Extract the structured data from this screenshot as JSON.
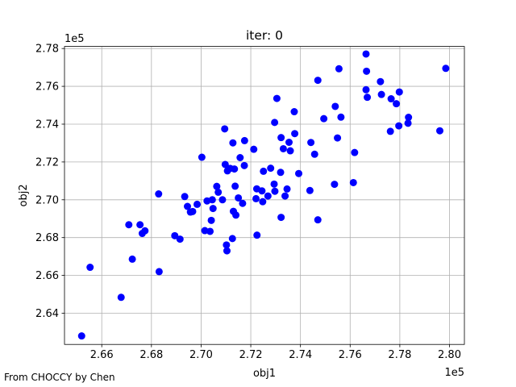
{
  "chart_data": {
    "type": "scatter",
    "title": "iter: 0",
    "xlabel": "obj1",
    "ylabel": "obj2",
    "x_offset_label": "1e5",
    "y_offset_label": "1e5",
    "xlim": [
      2.645,
      2.806
    ],
    "ylim": [
      2.6235,
      2.7811
    ],
    "xticks": [
      2.66,
      2.68,
      2.7,
      2.72,
      2.74,
      2.76,
      2.78,
      2.8
    ],
    "xtick_labels": [
      "2.66",
      "2.68",
      "2.70",
      "2.72",
      "2.74",
      "2.76",
      "2.78",
      "2.80"
    ],
    "yticks": [
      2.64,
      2.66,
      2.68,
      2.7,
      2.72,
      2.74,
      2.76,
      2.78
    ],
    "ytick_labels": [
      "2.64",
      "2.66",
      "2.68",
      "2.70",
      "2.72",
      "2.74",
      "2.76",
      "2.78"
    ],
    "grid": true,
    "color": "#0000ff",
    "points": [
      [
        2.6519,
        2.628
      ],
      [
        2.6553,
        2.6643
      ],
      [
        2.6678,
        2.6484
      ],
      [
        2.6709,
        2.6868
      ],
      [
        2.6723,
        2.6686
      ],
      [
        2.6754,
        2.6868
      ],
      [
        2.6763,
        2.6822
      ],
      [
        2.6774,
        2.6836
      ],
      [
        2.6829,
        2.7031
      ],
      [
        2.6831,
        2.662
      ],
      [
        2.6894,
        2.681
      ],
      [
        2.6915,
        2.6792
      ],
      [
        2.6934,
        2.7017
      ],
      [
        2.6945,
        2.6965
      ],
      [
        2.6957,
        2.6935
      ],
      [
        2.6966,
        2.6938
      ],
      [
        2.6984,
        2.6976
      ],
      [
        2.7003,
        2.7225
      ],
      [
        2.7015,
        2.6837
      ],
      [
        2.7024,
        2.6994
      ],
      [
        2.7036,
        2.6833
      ],
      [
        2.7041,
        2.6891
      ],
      [
        2.7045,
        2.7
      ],
      [
        2.7048,
        2.6954
      ],
      [
        2.7063,
        2.7071
      ],
      [
        2.7069,
        2.704
      ],
      [
        2.7086,
        2.7
      ],
      [
        2.7095,
        2.7375
      ],
      [
        2.7097,
        2.7187
      ],
      [
        2.7102,
        2.6761
      ],
      [
        2.7104,
        2.673
      ],
      [
        2.7106,
        2.7153
      ],
      [
        2.7117,
        2.7166
      ],
      [
        2.7126,
        2.6795
      ],
      [
        2.7128,
        2.7301
      ],
      [
        2.713,
        2.6939
      ],
      [
        2.7134,
        2.7163
      ],
      [
        2.7137,
        2.7072
      ],
      [
        2.714,
        2.6919
      ],
      [
        2.715,
        2.701
      ],
      [
        2.7157,
        2.7223
      ],
      [
        2.7167,
        2.6981
      ],
      [
        2.7174,
        2.7181
      ],
      [
        2.7175,
        2.7313
      ],
      [
        2.7212,
        2.7267
      ],
      [
        2.7221,
        2.7006
      ],
      [
        2.7225,
        2.6813
      ],
      [
        2.7224,
        2.7058
      ],
      [
        2.7245,
        2.7047
      ],
      [
        2.7248,
        2.699
      ],
      [
        2.7251,
        2.7151
      ],
      [
        2.7269,
        2.702
      ],
      [
        2.728,
        2.7167
      ],
      [
        2.7294,
        2.7083
      ],
      [
        2.7296,
        2.7409
      ],
      [
        2.7297,
        2.7045
      ],
      [
        2.7305,
        2.7536
      ],
      [
        2.732,
        2.7145
      ],
      [
        2.7322,
        2.6907
      ],
      [
        2.7322,
        2.7329
      ],
      [
        2.7331,
        2.727
      ],
      [
        2.7338,
        2.702
      ],
      [
        2.7346,
        2.7057
      ],
      [
        2.7354,
        2.7304
      ],
      [
        2.7359,
        2.7259
      ],
      [
        2.7375,
        2.7466
      ],
      [
        2.7377,
        2.735
      ],
      [
        2.7393,
        2.7139
      ],
      [
        2.7438,
        2.7049
      ],
      [
        2.7442,
        2.7303
      ],
      [
        2.7457,
        2.7241
      ],
      [
        2.747,
        2.7632
      ],
      [
        2.747,
        2.6894
      ],
      [
        2.7494,
        2.7429
      ],
      [
        2.7537,
        2.7082
      ],
      [
        2.754,
        2.7494
      ],
      [
        2.7549,
        2.7327
      ],
      [
        2.7555,
        2.7693
      ],
      [
        2.7563,
        2.7437
      ],
      [
        2.7613,
        2.7091
      ],
      [
        2.7618,
        2.725
      ],
      [
        2.7664,
        2.7771
      ],
      [
        2.7664,
        2.7582
      ],
      [
        2.7666,
        2.768
      ],
      [
        2.7669,
        2.7542
      ],
      [
        2.7722,
        2.7625
      ],
      [
        2.7726,
        2.7557
      ],
      [
        2.7762,
        2.7362
      ],
      [
        2.7765,
        2.7534
      ],
      [
        2.7786,
        2.7508
      ],
      [
        2.7796,
        2.7391
      ],
      [
        2.7798,
        2.757
      ],
      [
        2.7833,
        2.7405
      ],
      [
        2.7835,
        2.7436
      ],
      [
        2.7961,
        2.7365
      ],
      [
        2.7985,
        2.7695
      ]
    ]
  },
  "footer": {
    "text": "From CHOCCY by Chen"
  }
}
